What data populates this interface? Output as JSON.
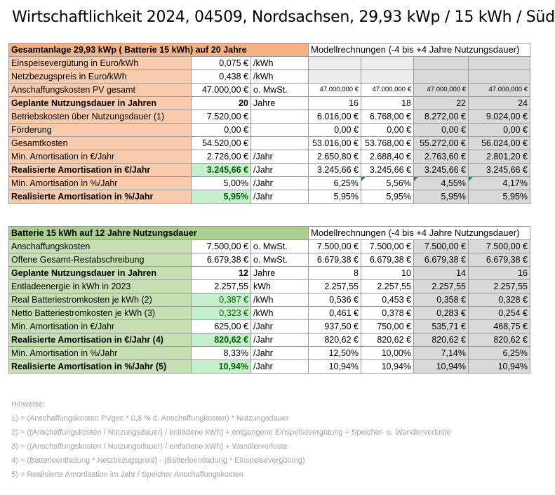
{
  "title": "Wirtschaftlichkeit 2024, 04509, Nordsachsen, 29,93 kWp / 15 kWh / Süd",
  "section1": {
    "header": "Gesamtanlage 29,93 kWp ( Batterie 15 kWh) auf 20 Jahre",
    "model_header": "Modellrechnungen (-4 bis +4 Jahre Nutzungsdauer)",
    "rows": [
      {
        "label": "Einspeisevergütung in Euro/kWh",
        "value": "0,075 €",
        "unit": "/kWh",
        "m": [
          "",
          "",
          "",
          ""
        ]
      },
      {
        "label": "Netzbezugspreis in Euro/kWh",
        "value": "0,438 €",
        "unit": "/kWh",
        "m": [
          "",
          "",
          "",
          ""
        ]
      },
      {
        "label": "Anschaffungskosten PV gesamt",
        "value": "47.000,00 €",
        "unit": "o. MwSt.",
        "m": [
          "47.000,000 €",
          "47.000,000 €",
          "47.000,000 €",
          "47.000,000 €"
        ]
      },
      {
        "label": "Geplante Nutzungsdauer in Jahren",
        "value": "20",
        "unit": "Jahre",
        "m": [
          "16",
          "18",
          "22",
          "24"
        ]
      },
      {
        "label": "Betriebskosten über Nutzungsdauer (1)",
        "value": "7.520,00 €",
        "unit": "",
        "m": [
          "6.016,00 €",
          "6.768,00 €",
          "8.272,00 €",
          "9.024,00 €"
        ]
      },
      {
        "label": "Förderung",
        "value": "0,00 €",
        "unit": "",
        "m": [
          "0,00 €",
          "0,00 €",
          "0,00 €",
          "0,00 €"
        ]
      },
      {
        "label": "Gesamtkosten",
        "value": "54.520,00 €",
        "unit": "",
        "m": [
          "53.016,00 €",
          "53.768,00 €",
          "55.272,00 €",
          "56.024,00 €"
        ]
      },
      {
        "label": "Min. Amortisation in €/Jahr",
        "value": "2.726,00 €",
        "unit": "/Jahr",
        "m": [
          "2.650,80 €",
          "2.688,40 €",
          "2.763,60 €",
          "2.801,20 €"
        ]
      },
      {
        "label": "Realisierte Amortisation  in €/Jahr",
        "value": "3.245,66 €",
        "unit": "/Jahr",
        "m": [
          "3.245,66 €",
          "3.245,66 €",
          "3.245,66 €",
          "3.245,66 €"
        ]
      },
      {
        "label": "Min. Amortisation in %/Jahr",
        "value": "5,00%",
        "unit": "/Jahr",
        "m": [
          "6,25%",
          "5,56%",
          "4,55%",
          "4,17%"
        ]
      },
      {
        "label": "Realisierte Amortisation  in %/Jahr",
        "value": "5,95%",
        "unit": "/Jahr",
        "m": [
          "5,95%",
          "5,95%",
          "5,95%",
          "5,95%"
        ]
      }
    ]
  },
  "section2": {
    "header": "Batterie 15 kWh auf 12 Jahre Nutzungsdauer",
    "model_header": "Modellrechnungen (-4 bis +4 Jahre Nutzungsdauer)",
    "rows": [
      {
        "label": "Anschaffungskosten",
        "value": "7.500,00 €",
        "unit": "o. MwSt.",
        "m": [
          "7.500,00 €",
          "7.500,00 €",
          "7.500,00 €",
          "7.500,00 €"
        ]
      },
      {
        "label": "Offene Gesamt-Restabschreibung",
        "value": "6.679,38 €",
        "unit": "o. MwSt.",
        "m": [
          "6.679,38 €",
          "6.679,38 €",
          "6.679,38 €",
          "6.679,38 €"
        ]
      },
      {
        "label": "Geplante Nutzungsdauer in Jahren",
        "value": "12",
        "unit": "Jahre",
        "m": [
          "8",
          "10",
          "14",
          "16"
        ]
      },
      {
        "label": "Entladeenergie in kWh in 2023",
        "value": "2.257,55",
        "unit": "kWh",
        "m": [
          "2.257,55",
          "2.257,55",
          "2.257,55",
          "2.257,55"
        ]
      },
      {
        "label": "Real Batteriestromkosten je kWh (2)",
        "value": "0,387 €",
        "unit": "/kWh",
        "m": [
          "0,536 €",
          "0,453 €",
          "0,358 €",
          "0,328 €"
        ]
      },
      {
        "label": "Netto Batteriestromkosten je kWh (3)",
        "value": "0,323 €",
        "unit": "/kWh",
        "m": [
          "0,461 €",
          "0,378 €",
          "0,283 €",
          "0,254 €"
        ]
      },
      {
        "label": "Min. Amortisation in €/Jahr",
        "value": "625,00 €",
        "unit": "/Jahr",
        "m": [
          "937,50 €",
          "750,00 €",
          "535,71 €",
          "468,75 €"
        ]
      },
      {
        "label": "Realisierte Amortisation  in €/Jahr (4)",
        "value": "820,62 €",
        "unit": "/Jahr",
        "m": [
          "820,62 €",
          "820,62 €",
          "820,62 €",
          "820,62 €"
        ]
      },
      {
        "label": "Min. Amortisation in %/Jahr",
        "value": "8,33%",
        "unit": "/Jahr",
        "m": [
          "12,50%",
          "10,00%",
          "7,14%",
          "6,25%"
        ]
      },
      {
        "label": "Realisierte Amortisation in %/Jahr (5)",
        "value": "10,94%",
        "unit": "/Jahr",
        "m": [
          "10,94%",
          "10,94%",
          "10,94%",
          "10,94%"
        ]
      }
    ]
  },
  "notes": [
    "Hinweise:",
    "1) = (Anschaffungskosten PVges * 0,8 % d. Anschaffungkosten) * Nutzungsdauer",
    "2) = ((Anschaffungskosten / Nutzungsdauer) / entladene kWh) + entgangene Einspeisevergütung + Speicher- u. Wandlerverluste",
    "3) = ((Anschaffungskosten / Nutzungsdauer) / entladene kWh) + Wandlerverluste",
    "4) = (Batterieentladung * Netzbezugspreis) - (Batterieentladung * Einspeisevergütung)",
    "5) = Realisierte Amortisation im Jahr / Speicher Anschaffungskosten"
  ],
  "colors": {
    "section1_header": "#f4b183",
    "section1_label": "#f8cbad",
    "section2_header": "#a9d08e",
    "section2_label": "#c6e0b4",
    "highlight": "#c6efce",
    "model_grey": "#d9d9d9"
  }
}
